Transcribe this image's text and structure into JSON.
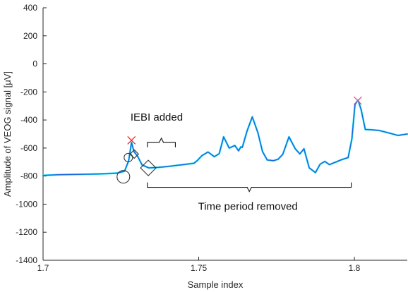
{
  "chart_data": {
    "type": "line",
    "xlabel": "Sample index",
    "ylabel": "Amplitude of VEOG signal [μV]",
    "xlim": [
      1.7,
      1.817
    ],
    "ylim": [
      -1400,
      400
    ],
    "xticks": [
      "1.7",
      "1.75",
      "1.8"
    ],
    "xtick_values": [
      1.7,
      1.75,
      1.8
    ],
    "yticks": [
      400,
      200,
      0,
      -200,
      -400,
      -600,
      -800,
      -1000,
      -1200,
      -1400
    ],
    "grid": false,
    "series": [
      {
        "role": "raw",
        "color": "#00e5ff",
        "x": [
          1.7,
          1.705,
          1.71,
          1.715,
          1.72,
          1.724,
          1.7262,
          1.7275,
          1.7284,
          1.7292,
          1.7304,
          1.7318,
          1.734,
          1.737,
          1.74,
          1.745,
          1.7485,
          1.7495,
          1.751,
          1.753,
          1.755,
          1.7566,
          1.758,
          1.7598,
          1.7616,
          1.7628,
          1.7635,
          1.764,
          1.7655,
          1.7672,
          1.769,
          1.7705,
          1.772,
          1.774,
          1.7755,
          1.777,
          1.779,
          1.781,
          1.7825,
          1.7838,
          1.7855,
          1.7875,
          1.789,
          1.7905,
          1.792,
          1.794,
          1.796,
          1.798,
          1.7992,
          1.8002,
          1.8012,
          1.8022,
          1.8035,
          1.8055,
          1.808,
          1.811,
          1.814,
          1.817
        ],
        "y": [
          -795,
          -790,
          -788,
          -786,
          -783,
          -778,
          -765,
          -690,
          -560,
          -625,
          -660,
          -720,
          -742,
          -738,
          -732,
          -718,
          -708,
          -690,
          -655,
          -628,
          -662,
          -640,
          -520,
          -600,
          -582,
          -620,
          -592,
          -595,
          -480,
          -378,
          -490,
          -625,
          -685,
          -690,
          -680,
          -645,
          -520,
          -605,
          -642,
          -605,
          -742,
          -775,
          -715,
          -695,
          -718,
          -700,
          -682,
          -668,
          -535,
          -290,
          -258,
          -328,
          -468,
          -470,
          -475,
          -492,
          -510,
          -500
        ]
      },
      {
        "role": "filtered",
        "color": "#1f63d6",
        "x": [
          1.7,
          1.705,
          1.71,
          1.715,
          1.72,
          1.724,
          1.7262,
          1.7275,
          1.7284,
          1.7292,
          1.7304,
          1.7318,
          1.734,
          1.737,
          1.74,
          1.745,
          1.7485,
          1.7495,
          1.751,
          1.753,
          1.755,
          1.7566,
          1.758,
          1.7598,
          1.7616,
          1.7628,
          1.7635,
          1.764,
          1.7655,
          1.7672,
          1.769,
          1.7705,
          1.772,
          1.774,
          1.7755,
          1.777,
          1.779,
          1.781,
          1.7825,
          1.7838,
          1.7855,
          1.7875,
          1.789,
          1.7905,
          1.792,
          1.794,
          1.796,
          1.798,
          1.7992,
          1.8002,
          1.8012,
          1.8022,
          1.8035,
          1.8055,
          1.808,
          1.811,
          1.814,
          1.817
        ],
        "y": [
          -795,
          -790,
          -788,
          -786,
          -783,
          -778,
          -765,
          -690,
          -560,
          -625,
          -660,
          -720,
          -742,
          -738,
          -732,
          -718,
          -708,
          -690,
          -655,
          -628,
          -662,
          -640,
          -520,
          -600,
          -582,
          -620,
          -592,
          -595,
          -480,
          -378,
          -490,
          -625,
          -685,
          -690,
          -680,
          -645,
          -520,
          -605,
          -642,
          -605,
          -742,
          -775,
          -715,
          -695,
          -718,
          -700,
          -682,
          -668,
          -535,
          -290,
          -258,
          -328,
          -468,
          -470,
          -475,
          -492,
          -510,
          -500
        ]
      }
    ],
    "markers": {
      "crosses": [
        {
          "x": 1.7284,
          "y": -545,
          "color": "#ff2020"
        },
        {
          "x": 1.8011,
          "y": -262,
          "color": "#e0508a"
        }
      ],
      "circles": [
        {
          "x": 1.7258,
          "y": -805,
          "size": "large"
        },
        {
          "x": 1.7274,
          "y": -668,
          "size": "small"
        }
      ],
      "diamonds": [
        {
          "x": 1.7293,
          "y": -643,
          "size": "small"
        },
        {
          "x": 1.7338,
          "y": -742,
          "size": "large"
        }
      ]
    },
    "annotations": [
      {
        "text": "IEBI added",
        "x": 1.7365,
        "y": -405
      },
      {
        "text": "Time period removed",
        "x": 1.7658,
        "y": -1040
      }
    ],
    "brackets": [
      {
        "x_start": 1.7335,
        "x_end": 1.7425,
        "y": -560,
        "direction": "up"
      },
      {
        "x_start": 1.7335,
        "x_end": 1.799,
        "y": -880,
        "direction": "down"
      }
    ]
  }
}
